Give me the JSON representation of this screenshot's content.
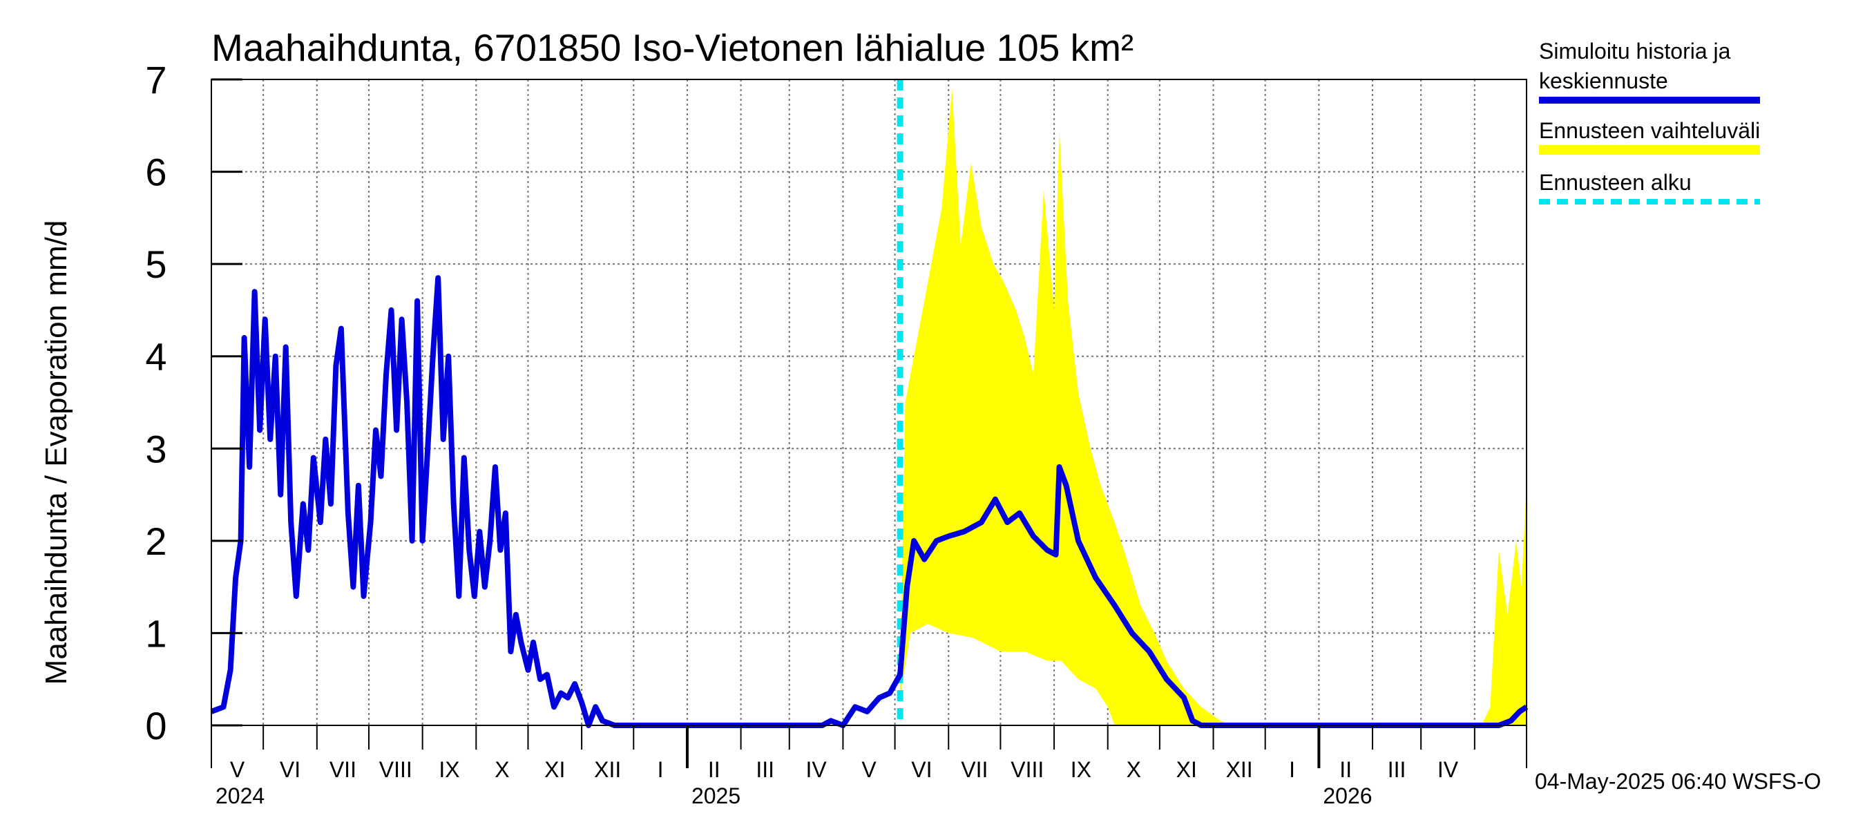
{
  "chart_data": {
    "type": "line",
    "title": "Maahaihdunta, 6701850 Iso-Vietonen lähialue 105 km²",
    "ylabel": "Maahaihdunta / Evaporation   mm/d",
    "ylim": [
      0,
      7
    ],
    "yticks": [
      "0",
      "1",
      "2",
      "3",
      "4",
      "5",
      "6",
      "7"
    ],
    "xlim": [
      "2024-04-01",
      "2026-05-01"
    ],
    "grid": true,
    "legend_position": "right",
    "months": [
      "V",
      "VI",
      "VII",
      "VIII",
      "IX",
      "X",
      "XI",
      "XII",
      "I",
      "II",
      "III",
      "IV",
      "V",
      "VI",
      "VII",
      "VIII",
      "IX",
      "X",
      "XI",
      "XII",
      "I",
      "II",
      "III",
      "IV"
    ],
    "years": [
      {
        "label": "2024",
        "date": "2024-04-01"
      },
      {
        "label": "2025",
        "date": "2025-01-01"
      },
      {
        "label": "2026",
        "date": "2026-01-01"
      }
    ],
    "forecast_start": "2025-05-04",
    "series": [
      {
        "name": "Simuloitu historia ja keskiennuste",
        "color": "#0000dd",
        "points": [
          [
            "2024-04-01",
            0.15
          ],
          [
            "2024-04-08",
            0.2
          ],
          [
            "2024-04-12",
            0.6
          ],
          [
            "2024-04-15",
            1.6
          ],
          [
            "2024-04-18",
            2.0
          ],
          [
            "2024-04-20",
            4.2
          ],
          [
            "2024-04-23",
            2.8
          ],
          [
            "2024-04-26",
            4.7
          ],
          [
            "2024-04-29",
            3.2
          ],
          [
            "2024-05-02",
            4.4
          ],
          [
            "2024-05-05",
            3.1
          ],
          [
            "2024-05-08",
            4.0
          ],
          [
            "2024-05-11",
            2.5
          ],
          [
            "2024-05-14",
            4.1
          ],
          [
            "2024-05-17",
            2.2
          ],
          [
            "2024-05-20",
            1.4
          ],
          [
            "2024-05-24",
            2.4
          ],
          [
            "2024-05-27",
            1.9
          ],
          [
            "2024-05-30",
            2.9
          ],
          [
            "2024-06-03",
            2.2
          ],
          [
            "2024-06-06",
            3.1
          ],
          [
            "2024-06-09",
            2.4
          ],
          [
            "2024-06-12",
            3.9
          ],
          [
            "2024-06-15",
            4.3
          ],
          [
            "2024-06-19",
            2.3
          ],
          [
            "2024-06-22",
            1.5
          ],
          [
            "2024-06-25",
            2.6
          ],
          [
            "2024-06-28",
            1.4
          ],
          [
            "2024-07-02",
            2.2
          ],
          [
            "2024-07-05",
            3.2
          ],
          [
            "2024-07-08",
            2.7
          ],
          [
            "2024-07-11",
            3.8
          ],
          [
            "2024-07-14",
            4.5
          ],
          [
            "2024-07-17",
            3.2
          ],
          [
            "2024-07-20",
            4.4
          ],
          [
            "2024-07-23",
            3.5
          ],
          [
            "2024-07-26",
            2.0
          ],
          [
            "2024-07-29",
            4.6
          ],
          [
            "2024-08-01",
            2.0
          ],
          [
            "2024-08-04",
            3.0
          ],
          [
            "2024-08-07",
            4.0
          ],
          [
            "2024-08-10",
            4.85
          ],
          [
            "2024-08-13",
            3.1
          ],
          [
            "2024-08-16",
            4.0
          ],
          [
            "2024-08-19",
            2.4
          ],
          [
            "2024-08-22",
            1.4
          ],
          [
            "2024-08-25",
            2.9
          ],
          [
            "2024-08-28",
            1.9
          ],
          [
            "2024-08-31",
            1.4
          ],
          [
            "2024-09-03",
            2.1
          ],
          [
            "2024-09-06",
            1.5
          ],
          [
            "2024-09-09",
            2.0
          ],
          [
            "2024-09-12",
            2.8
          ],
          [
            "2024-09-15",
            1.9
          ],
          [
            "2024-09-18",
            2.3
          ],
          [
            "2024-09-21",
            0.8
          ],
          [
            "2024-09-24",
            1.2
          ],
          [
            "2024-09-27",
            0.9
          ],
          [
            "2024-10-01",
            0.6
          ],
          [
            "2024-10-04",
            0.9
          ],
          [
            "2024-10-08",
            0.5
          ],
          [
            "2024-10-12",
            0.55
          ],
          [
            "2024-10-16",
            0.2
          ],
          [
            "2024-10-20",
            0.35
          ],
          [
            "2024-10-24",
            0.3
          ],
          [
            "2024-10-28",
            0.45
          ],
          [
            "2024-11-01",
            0.25
          ],
          [
            "2024-11-05",
            0.0
          ],
          [
            "2024-11-09",
            0.2
          ],
          [
            "2024-11-13",
            0.05
          ],
          [
            "2024-11-20",
            0.0
          ],
          [
            "2025-03-20",
            0.0
          ],
          [
            "2025-03-25",
            0.05
          ],
          [
            "2025-04-01",
            0.0
          ],
          [
            "2025-04-08",
            0.2
          ],
          [
            "2025-04-15",
            0.15
          ],
          [
            "2025-04-22",
            0.3
          ],
          [
            "2025-04-28",
            0.35
          ],
          [
            "2025-05-04",
            0.55
          ],
          [
            "2025-05-08",
            1.5
          ],
          [
            "2025-05-12",
            2.0
          ],
          [
            "2025-05-18",
            1.8
          ],
          [
            "2025-05-25",
            2.0
          ],
          [
            "2025-06-01",
            2.05
          ],
          [
            "2025-06-10",
            2.1
          ],
          [
            "2025-06-20",
            2.2
          ],
          [
            "2025-06-28",
            2.45
          ],
          [
            "2025-07-05",
            2.2
          ],
          [
            "2025-07-12",
            2.3
          ],
          [
            "2025-07-20",
            2.05
          ],
          [
            "2025-07-28",
            1.9
          ],
          [
            "2025-08-02",
            1.85
          ],
          [
            "2025-08-04",
            2.8
          ],
          [
            "2025-08-08",
            2.6
          ],
          [
            "2025-08-15",
            2.0
          ],
          [
            "2025-08-25",
            1.6
          ],
          [
            "2025-09-05",
            1.3
          ],
          [
            "2025-09-15",
            1.0
          ],
          [
            "2025-09-25",
            0.8
          ],
          [
            "2025-10-05",
            0.5
          ],
          [
            "2025-10-15",
            0.3
          ],
          [
            "2025-10-20",
            0.05
          ],
          [
            "2025-10-25",
            0.0
          ],
          [
            "2026-04-15",
            0.0
          ],
          [
            "2026-04-22",
            0.05
          ],
          [
            "2026-04-27",
            0.15
          ],
          [
            "2026-05-01",
            0.2
          ]
        ]
      },
      {
        "name": "Ennusteen vaihteluväli",
        "color": "#ffff00",
        "type": "area",
        "upper": [
          [
            "2025-05-04",
            0.6
          ],
          [
            "2025-05-07",
            3.5
          ],
          [
            "2025-05-12",
            4.0
          ],
          [
            "2025-05-20",
            4.8
          ],
          [
            "2025-05-28",
            5.6
          ],
          [
            "2025-06-03",
            6.9
          ],
          [
            "2025-06-08",
            5.2
          ],
          [
            "2025-06-14",
            6.1
          ],
          [
            "2025-06-20",
            5.4
          ],
          [
            "2025-06-27",
            5.0
          ],
          [
            "2025-07-03",
            4.8
          ],
          [
            "2025-07-10",
            4.5
          ],
          [
            "2025-07-15",
            4.2
          ],
          [
            "2025-07-20",
            3.8
          ],
          [
            "2025-07-26",
            5.8
          ],
          [
            "2025-08-01",
            4.5
          ],
          [
            "2025-08-04",
            6.45
          ],
          [
            "2025-08-09",
            4.6
          ],
          [
            "2025-08-15",
            3.6
          ],
          [
            "2025-08-22",
            3.0
          ],
          [
            "2025-08-28",
            2.6
          ],
          [
            "2025-09-05",
            2.2
          ],
          [
            "2025-09-12",
            1.8
          ],
          [
            "2025-09-20",
            1.3
          ],
          [
            "2025-09-28",
            1.0
          ],
          [
            "2025-10-05",
            0.7
          ],
          [
            "2025-10-15",
            0.4
          ],
          [
            "2025-10-25",
            0.2
          ],
          [
            "2025-11-05",
            0.05
          ],
          [
            "2025-11-12",
            0.0
          ],
          [
            "2026-04-05",
            0.0
          ],
          [
            "2026-04-10",
            0.2
          ],
          [
            "2026-04-15",
            1.9
          ],
          [
            "2026-04-20",
            1.2
          ],
          [
            "2026-04-25",
            2.0
          ],
          [
            "2026-04-28",
            1.5
          ],
          [
            "2026-05-01",
            2.6
          ]
        ],
        "lower": [
          [
            "2025-05-04",
            0.3
          ],
          [
            "2025-05-10",
            1.0
          ],
          [
            "2025-05-20",
            1.1
          ],
          [
            "2025-06-01",
            1.0
          ],
          [
            "2025-06-15",
            0.95
          ],
          [
            "2025-07-01",
            0.8
          ],
          [
            "2025-07-15",
            0.8
          ],
          [
            "2025-07-28",
            0.7
          ],
          [
            "2025-08-05",
            0.7
          ],
          [
            "2025-08-15",
            0.5
          ],
          [
            "2025-08-25",
            0.4
          ],
          [
            "2025-09-01",
            0.2
          ],
          [
            "2025-09-05",
            0.0
          ],
          [
            "2026-05-01",
            0.0
          ]
        ]
      },
      {
        "name": "Ennusteen alku",
        "color": "#00e5ee",
        "type": "vline",
        "x": "2025-05-04"
      }
    ]
  },
  "legend": {
    "items": [
      {
        "line1": "Simuloitu historia ja",
        "line2": "keskiennuste",
        "color": "#0000dd",
        "style": "solid"
      },
      {
        "line1": "Ennusteen vaihteluväli",
        "line2": "",
        "color": "#ffff00",
        "style": "solid"
      },
      {
        "line1": "Ennusteen alku",
        "line2": "",
        "color": "#00e5ee",
        "style": "dashed"
      }
    ]
  },
  "footer": "04-May-2025 06:40 WSFS-O"
}
